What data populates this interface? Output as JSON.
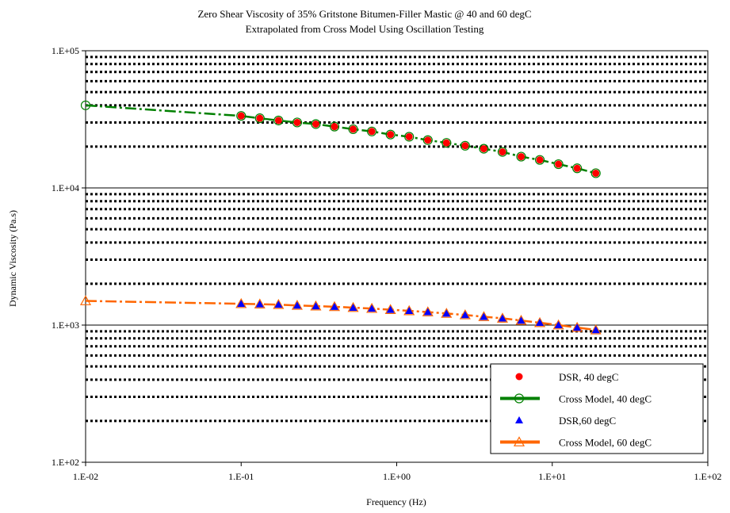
{
  "chart_data": {
    "type": "scatter",
    "title": "Zero Shear Viscosity of 35% Gritstone Bitumen-Filler Mastic @ 40 and 60 degC",
    "subtitle": "Extrapolated from Cross Model Using Oscillation Testing",
    "xlabel": "Frequency (Hz)",
    "ylabel": "Dynamic Viscosity (Pa.s)",
    "x_scale": "log",
    "y_scale": "log",
    "xlim": [
      0.01,
      100
    ],
    "ylim": [
      100,
      100000
    ],
    "x_ticks": [
      {
        "value": 0.01,
        "label": "1.E-02"
      },
      {
        "value": 0.1,
        "label": "1.E-01"
      },
      {
        "value": 1,
        "label": "1.E+00"
      },
      {
        "value": 10,
        "label": "1.E+01"
      },
      {
        "value": 100,
        "label": "1.E+02"
      }
    ],
    "y_ticks": [
      {
        "value": 100,
        "label": "1.E+02"
      },
      {
        "value": 1000,
        "label": "1.E+03"
      },
      {
        "value": 10000,
        "label": "1.E+04"
      },
      {
        "value": 100000,
        "label": "1.E+05"
      }
    ],
    "grid": {
      "major_y": "solid",
      "minor_y": "dotted",
      "x": "none"
    },
    "legend_position": "bottom-right",
    "series": [
      {
        "name": "DSR, 40 degC",
        "kind": "scatter",
        "marker": "circle-filled",
        "color": "#ff0000",
        "x": [
          0.1,
          0.1318,
          0.1738,
          0.2291,
          0.302,
          0.3981,
          0.5248,
          0.6918,
          0.912,
          1.2023,
          1.5849,
          2.0893,
          2.7542,
          3.6308,
          4.7863,
          6.3096,
          8.3176,
          10.965,
          14.454,
          19.055
        ],
        "y": [
          33500,
          32200,
          31000,
          30000,
          29200,
          28000,
          26800,
          25800,
          24500,
          23600,
          22300,
          21300,
          20300,
          19300,
          18300,
          16900,
          16000,
          14900,
          13900,
          12800
        ]
      },
      {
        "name": "Cross Model, 40 degC",
        "kind": "line",
        "marker": "circle-open",
        "color": "#008000",
        "dash": "dash-dot",
        "x": [
          0.01,
          0.1,
          0.1318,
          0.1738,
          0.2291,
          0.302,
          0.3981,
          0.5248,
          0.6918,
          0.912,
          1.2023,
          1.5849,
          2.0893,
          2.7542,
          3.6308,
          4.7863,
          6.3096,
          8.3176,
          10.965,
          14.454,
          19.055
        ],
        "y": [
          40000,
          33500,
          32200,
          31000,
          30000,
          29200,
          28000,
          26800,
          25800,
          24500,
          23600,
          22300,
          21300,
          20300,
          19300,
          18300,
          16900,
          16000,
          14900,
          13900,
          12800
        ]
      },
      {
        "name": "DSR,60 degC",
        "kind": "scatter",
        "marker": "triangle-filled",
        "color": "#0000ff",
        "x": [
          0.1,
          0.1318,
          0.1738,
          0.2291,
          0.302,
          0.3981,
          0.5248,
          0.6918,
          0.912,
          1.2023,
          1.5849,
          2.0893,
          2.7542,
          3.6308,
          4.7863,
          6.3096,
          8.3176,
          10.965,
          14.454,
          19.055
        ],
        "y": [
          1430,
          1420,
          1410,
          1390,
          1375,
          1360,
          1340,
          1320,
          1295,
          1270,
          1245,
          1215,
          1185,
          1150,
          1120,
          1080,
          1040,
          1000,
          960,
          920
        ]
      },
      {
        "name": "Cross Model, 60 degC",
        "kind": "line",
        "marker": "triangle-open",
        "color": "#ff6600",
        "dash": "dash-dot",
        "x": [
          0.01,
          0.1,
          0.1318,
          0.1738,
          0.2291,
          0.302,
          0.3981,
          0.5248,
          0.6918,
          0.912,
          1.2023,
          1.5849,
          2.0893,
          2.7542,
          3.6308,
          4.7863,
          6.3096,
          8.3176,
          10.965,
          14.454,
          19.055
        ],
        "y": [
          1500,
          1430,
          1420,
          1410,
          1390,
          1375,
          1360,
          1340,
          1320,
          1295,
          1270,
          1245,
          1215,
          1185,
          1150,
          1120,
          1080,
          1040,
          1000,
          960,
          920
        ]
      }
    ]
  }
}
